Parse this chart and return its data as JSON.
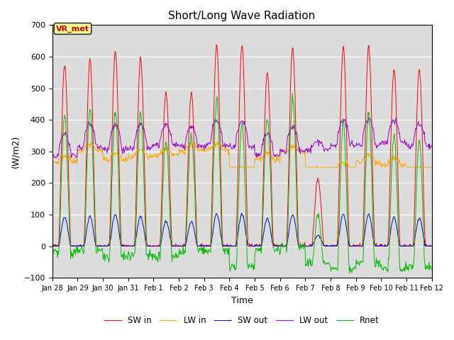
{
  "title": "Short/Long Wave Radiation",
  "xlabel": "Time",
  "ylabel": "(W/m2)",
  "ylim": [
    -100,
    700
  ],
  "yticks": [
    -100,
    0,
    100,
    200,
    300,
    400,
    500,
    600,
    700
  ],
  "station_label": "VR_met",
  "xtick_labels": [
    "Jan 28",
    "Jan 29",
    "Jan 30",
    "Jan 31",
    "Feb 1",
    "Feb 2",
    "Feb 3",
    "Feb 4",
    "Feb 5",
    "Feb 6",
    "Feb 7",
    "Feb 8",
    "Feb 9",
    "Feb 10",
    "Feb 11",
    "Feb 12"
  ],
  "colors": {
    "SW_in": "#ff0000",
    "LW_in": "#ffa500",
    "SW_out": "#0000cd",
    "LW_out": "#9900cc",
    "Rnet": "#00bb00"
  },
  "legend_entries": [
    "SW in",
    "LW in",
    "SW out",
    "LW out",
    "Rnet"
  ],
  "background_color": "#dcdcdc",
  "title_fontsize": 11,
  "label_color": "#cc0000",
  "box_facecolor": "#ffff99",
  "box_edgecolor": "#333333"
}
